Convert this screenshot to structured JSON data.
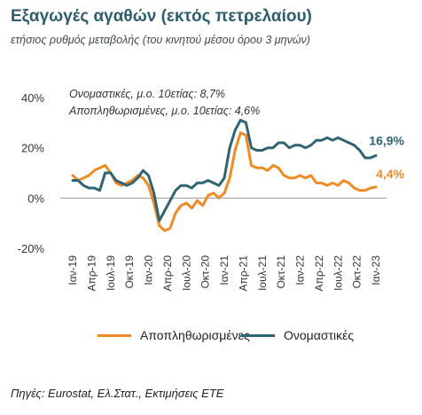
{
  "header": {
    "title": "Εξαγωγές αγαθών (εκτός πετρελαίου)",
    "subtitle": "ετήσιος ρυθμός μεταβολής (του κινητού μέσου όρου 3 μηνών)"
  },
  "source": "Πηγές: Eurostat, Ελ.Στατ., Εκτιμήσεις ΕΤΕ",
  "chart_data": {
    "type": "line",
    "ylim": [
      -20,
      40
    ],
    "yticks": [
      "40%",
      "20%",
      "0%",
      "-20%"
    ],
    "ytick_values": [
      40,
      20,
      0,
      -20
    ],
    "xticks": [
      "Ιαν-19",
      "Απρ-19",
      "Ιουλ-19",
      "Οκτ-19",
      "Ιαν-20",
      "Απρ-20",
      "Ιουλ-20",
      "Οκτ-20",
      "Ιαν-21",
      "Απρ-21",
      "Ιουλ-21",
      "Οκτ-21",
      "Ιαν-22",
      "Απρ-22",
      "Ιουλ-22",
      "Οκτ-22",
      "Ιαν-23"
    ],
    "annotations": [
      "Ονομαστικές, μ.ο. 10ετίας: 8,7%",
      "Αποπληθωρισμένες, μ.ο. 10ετίας: 4,6%"
    ],
    "end_labels": {
      "nominal": "16,9%",
      "real": "4,4%"
    },
    "colors": {
      "nominal": "#2f6474",
      "real": "#f08a24",
      "axis": "#9a9a9a"
    },
    "series": [
      {
        "name": "Αποπληθωρισμένες",
        "key": "real",
        "values": [
          9,
          7,
          8,
          9,
          11,
          12,
          13,
          10,
          6,
          5,
          6,
          7,
          9,
          8,
          5,
          -2,
          -11,
          -13,
          -12,
          -6,
          -3,
          -2,
          -4,
          -1,
          -3,
          1,
          2,
          0,
          2,
          8,
          19,
          26,
          25,
          13,
          12,
          12,
          11,
          13,
          12,
          9,
          8,
          8,
          9,
          8,
          9,
          6,
          6,
          5,
          6,
          5,
          7,
          6,
          4,
          3,
          3,
          4,
          4.4
        ]
      },
      {
        "name": "Ονομαστικές",
        "key": "nominal",
        "values": [
          7,
          7,
          5,
          4,
          4,
          3,
          10,
          10,
          7,
          6,
          5,
          6,
          8,
          11,
          9,
          2,
          -9,
          -5,
          -1,
          3,
          5,
          5,
          4,
          6,
          6,
          7,
          6,
          5,
          8,
          20,
          27,
          31,
          30,
          20,
          19,
          19,
          20,
          20,
          22,
          22,
          20,
          21,
          21,
          20,
          21,
          23,
          23,
          24,
          23,
          24,
          23,
          22,
          21,
          19,
          16,
          16,
          16.9
        ]
      }
    ]
  },
  "legend": [
    {
      "label": "Αποπληθωρισμένες"
    },
    {
      "label": "Ονομαστικές"
    }
  ]
}
